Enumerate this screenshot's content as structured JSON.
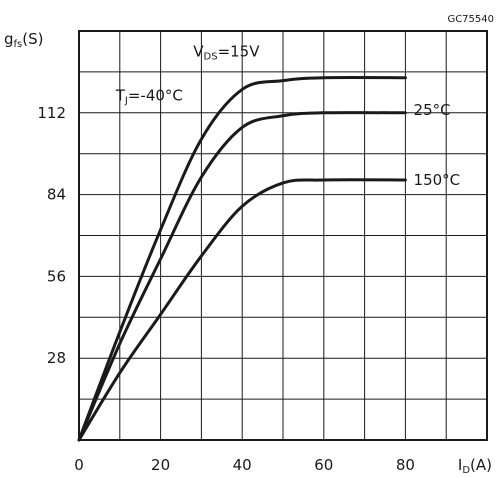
{
  "figure_code": "GC75540",
  "chart_data": {
    "type": "line",
    "ylabel": "gfs(S)",
    "xlabel": "ID(A)",
    "xlim": [
      0,
      100
    ],
    "ylim": [
      0,
      140
    ],
    "x_ticks": [
      0,
      20,
      40,
      60,
      80
    ],
    "y_ticks": [
      28,
      56,
      84,
      112
    ],
    "grid": true,
    "condition": "VDS=15V",
    "series": [
      {
        "name": "TJ=-40°C",
        "x": [
          0,
          10,
          20,
          30,
          40,
          50,
          60,
          80
        ],
        "y": [
          0,
          37,
          72,
          103,
          120,
          123,
          124,
          124
        ]
      },
      {
        "name": "25°C",
        "x": [
          0,
          10,
          20,
          30,
          40,
          50,
          60,
          80
        ],
        "y": [
          0,
          33,
          62,
          90,
          107,
          111,
          112,
          112
        ]
      },
      {
        "name": "150°C",
        "x": [
          0,
          10,
          20,
          30,
          40,
          50,
          60,
          80
        ],
        "y": [
          0,
          23,
          43,
          63,
          80,
          88,
          89,
          89
        ]
      }
    ],
    "annotations": [
      {
        "text": "VDS=15V",
        "x": 28,
        "y": 133
      },
      {
        "text": "TJ=-40°C",
        "x": 9,
        "y": 118
      },
      {
        "text": "25°C",
        "x": 82,
        "y": 113
      },
      {
        "text": "150°C",
        "x": 82,
        "y": 89
      }
    ]
  }
}
